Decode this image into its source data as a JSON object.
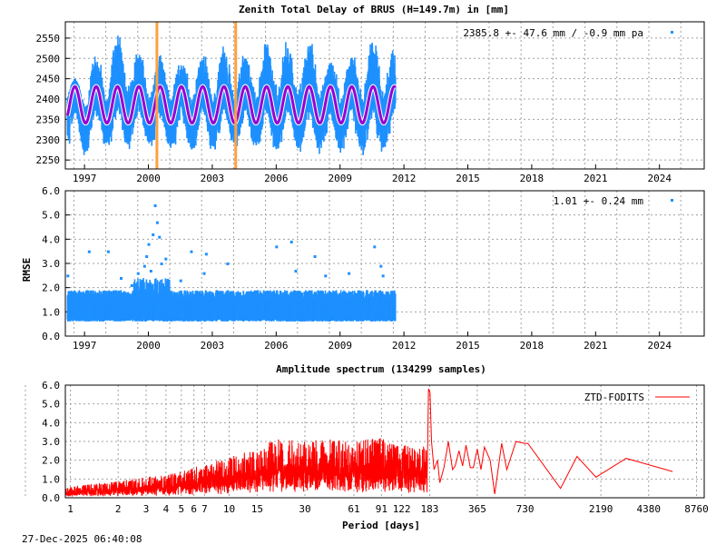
{
  "timestamp": "27-Dec-2025 06:40:08",
  "colors": {
    "observations": "#1e90ff",
    "model": "#9400d3",
    "model_outline": "#ffffff",
    "offsets": "#ffa040",
    "spectrum": "#ff0000",
    "grid": "#a0a0a0"
  },
  "chart_data": [
    {
      "type": "scatter",
      "title": "Zenith Total Delay of BRUS (H=149.7m) in [mm]",
      "xlabel": "",
      "ylabel": "",
      "xlim": [
        1996.1,
        2026.1
      ],
      "ylim": [
        2228,
        2590
      ],
      "grid": true,
      "x_ticks": [
        "1997",
        "2000",
        "2003",
        "2006",
        "2009",
        "2012",
        "2015",
        "2018",
        "2021",
        "2024"
      ],
      "y_ticks": [
        "2250",
        "2300",
        "2350",
        "2400",
        "2450",
        "2500",
        "2550"
      ],
      "legend": {
        "text": "2385.8 +-  47.6 mm / -0.9 mm pa",
        "placement": "top-right"
      },
      "data_span": [
        1996.2,
        2011.6
      ],
      "model": {
        "type": "annual sinusoid",
        "mean": 2385.8,
        "amplitude": 45,
        "period_years": 1,
        "peak_fraction_of_year": 0.55
      },
      "envelope": {
        "summer_max": [
          2440,
          2510,
          2585,
          2535,
          2510,
          2505,
          2520,
          2540,
          2520,
          2565,
          2550,
          2560,
          2505,
          2525,
          2570,
          2550
        ],
        "winter_min": [
          2250,
          2265,
          2275,
          2280,
          2265,
          2260,
          2270,
          2275,
          2265,
          2255,
          2265,
          2255,
          2250,
          2255,
          2260,
          2270
        ]
      },
      "offsets": [
        2000.4,
        2004.1
      ]
    },
    {
      "type": "scatter",
      "title": "",
      "xlabel": "",
      "ylabel": "RMSE",
      "xlim": [
        1996.1,
        2026.1
      ],
      "ylim": [
        0,
        6
      ],
      "grid": true,
      "x_ticks": [
        "1997",
        "2000",
        "2003",
        "2006",
        "2009",
        "2012",
        "2015",
        "2018",
        "2021",
        "2024"
      ],
      "y_ticks": [
        "0.0",
        "1.0",
        "2.0",
        "3.0",
        "4.0",
        "5.0",
        "6.0"
      ],
      "legend": {
        "text": "1.01 +-  0.24 mm",
        "placement": "top-right"
      },
      "data_span": [
        1996.2,
        2011.6
      ],
      "typical_range": [
        0.6,
        1.9
      ],
      "outliers": [
        [
          1996.2,
          2.5
        ],
        [
          1997.2,
          3.5
        ],
        [
          1998.1,
          3.5
        ],
        [
          1998.7,
          2.4
        ],
        [
          1999.2,
          2.1
        ],
        [
          1999.5,
          2.6
        ],
        [
          1999.8,
          2.9
        ],
        [
          1999.9,
          3.3
        ],
        [
          2000.0,
          3.8
        ],
        [
          2000.1,
          2.7
        ],
        [
          2000.2,
          4.2
        ],
        [
          2000.3,
          5.4
        ],
        [
          2000.4,
          4.7
        ],
        [
          2000.5,
          4.1
        ],
        [
          2000.6,
          3.0
        ],
        [
          2000.8,
          3.2
        ],
        [
          2001.5,
          2.3
        ],
        [
          2002.0,
          3.5
        ],
        [
          2002.7,
          3.4
        ],
        [
          2002.6,
          2.6
        ],
        [
          2003.7,
          3.0
        ],
        [
          2006.0,
          3.7
        ],
        [
          2006.7,
          3.9
        ],
        [
          2006.9,
          2.7
        ],
        [
          2007.8,
          3.3
        ],
        [
          2008.3,
          2.5
        ],
        [
          2009.4,
          2.6
        ],
        [
          2010.6,
          3.7
        ],
        [
          2010.9,
          2.9
        ],
        [
          2011.0,
          2.5
        ]
      ]
    },
    {
      "type": "line",
      "title": "Amplitude spectrum (134299 samples)",
      "xlabel": "Period [days]",
      "ylabel": "",
      "x_scale": "log",
      "xlim": [
        0.93,
        9800
      ],
      "ylim": [
        0,
        6
      ],
      "grid": true,
      "x_ticks": [
        "1",
        "2",
        "3",
        "4",
        "5",
        "6",
        "7",
        "10",
        "15",
        "30",
        "61",
        "91",
        "122",
        "183",
        "365",
        "730",
        "2190",
        "4380",
        "8760"
      ],
      "y_ticks": [
        "0.0",
        "1.0",
        "2.0",
        "3.0",
        "4.0",
        "5.0",
        "6.0"
      ],
      "legend": {
        "text": "ZTD-FODITS",
        "placement": "top-right"
      },
      "series": [
        {
          "name": "ZTD-FODITS",
          "noise_envelope": [
            [
              1,
              0.6
            ],
            [
              2,
              0.9
            ],
            [
              3,
              1.1
            ],
            [
              5,
              1.4
            ],
            [
              7,
              1.8
            ],
            [
              10,
              2.2
            ],
            [
              15,
              2.6
            ],
            [
              20,
              3.2
            ],
            [
              30,
              3.0
            ],
            [
              45,
              3.2
            ],
            [
              60,
              3.0
            ],
            [
              90,
              3.2
            ],
            [
              120,
              2.8
            ],
            [
              175,
              2.8
            ]
          ],
          "points": [
            [
              176,
              0.3
            ],
            [
              180,
              5.8
            ],
            [
              184,
              5.6
            ],
            [
              188,
              3.0
            ],
            [
              195,
              1.5
            ],
            [
              205,
              2.0
            ],
            [
              212,
              0.8
            ],
            [
              225,
              1.6
            ],
            [
              240,
              3.0
            ],
            [
              255,
              1.5
            ],
            [
              265,
              1.7
            ],
            [
              280,
              2.5
            ],
            [
              295,
              1.7
            ],
            [
              310,
              2.8
            ],
            [
              330,
              1.6
            ],
            [
              345,
              1.6
            ],
            [
              365,
              2.6
            ],
            [
              385,
              1.5
            ],
            [
              405,
              2.7
            ],
            [
              440,
              2.0
            ],
            [
              470,
              0.2
            ],
            [
              520,
              2.9
            ],
            [
              560,
              1.5
            ],
            [
              640,
              3.0
            ],
            [
              720,
              2.9
            ],
            [
              760,
              2.9
            ],
            [
              1220,
              0.5
            ],
            [
              1550,
              2.2
            ],
            [
              2040,
              1.1
            ],
            [
              3160,
              2.1
            ],
            [
              6200,
              1.4
            ]
          ]
        }
      ]
    }
  ]
}
